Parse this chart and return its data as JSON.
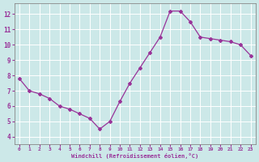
{
  "xlabel": "Windchill (Refroidissement éolien,°C)",
  "xlim": [
    -0.5,
    23.5
  ],
  "ylim": [
    3.5,
    12.7
  ],
  "xticks": [
    0,
    1,
    2,
    3,
    4,
    5,
    6,
    7,
    8,
    9,
    10,
    11,
    12,
    13,
    14,
    15,
    16,
    17,
    18,
    19,
    20,
    21,
    22,
    23
  ],
  "yticks": [
    4,
    5,
    6,
    7,
    8,
    9,
    10,
    11,
    12
  ],
  "bg_color": "#cce8e8",
  "grid_color": "#ffffff",
  "line_color": "#993399",
  "marker": "D",
  "markersize": 2.0,
  "linewidth": 0.9,
  "x": [
    7.8,
    7.0,
    6.8,
    6.5,
    6.0,
    5.8,
    5.5,
    5.2,
    4.5,
    5.0,
    6.3,
    7.5,
    8.5,
    9.5,
    10.5,
    12.2,
    12.2,
    11.5,
    10.5,
    10.4,
    10.3,
    10.2,
    10.0,
    9.3
  ],
  "y": [
    7.8,
    7.0,
    6.8,
    6.5,
    6.0,
    5.8,
    5.5,
    5.2,
    4.5,
    5.0,
    6.3,
    7.5,
    8.5,
    9.5,
    10.5,
    12.2,
    12.2,
    11.5,
    10.5,
    10.4,
    10.3,
    10.2,
    10.0,
    9.3
  ],
  "windchill_x": [
    0,
    1,
    2,
    3,
    4,
    5,
    6,
    7,
    8,
    9,
    10,
    11,
    12,
    13,
    14,
    15,
    16,
    17,
    18,
    19,
    20,
    21,
    22,
    23
  ],
  "temp_y": [
    7.8,
    7.0,
    6.8,
    6.5,
    6.0,
    5.8,
    5.5,
    5.2,
    4.5,
    5.0,
    6.3,
    7.5,
    8.5,
    9.5,
    10.5,
    12.2,
    12.2,
    11.5,
    10.5,
    10.4,
    10.3,
    10.2,
    10.0,
    9.3
  ]
}
